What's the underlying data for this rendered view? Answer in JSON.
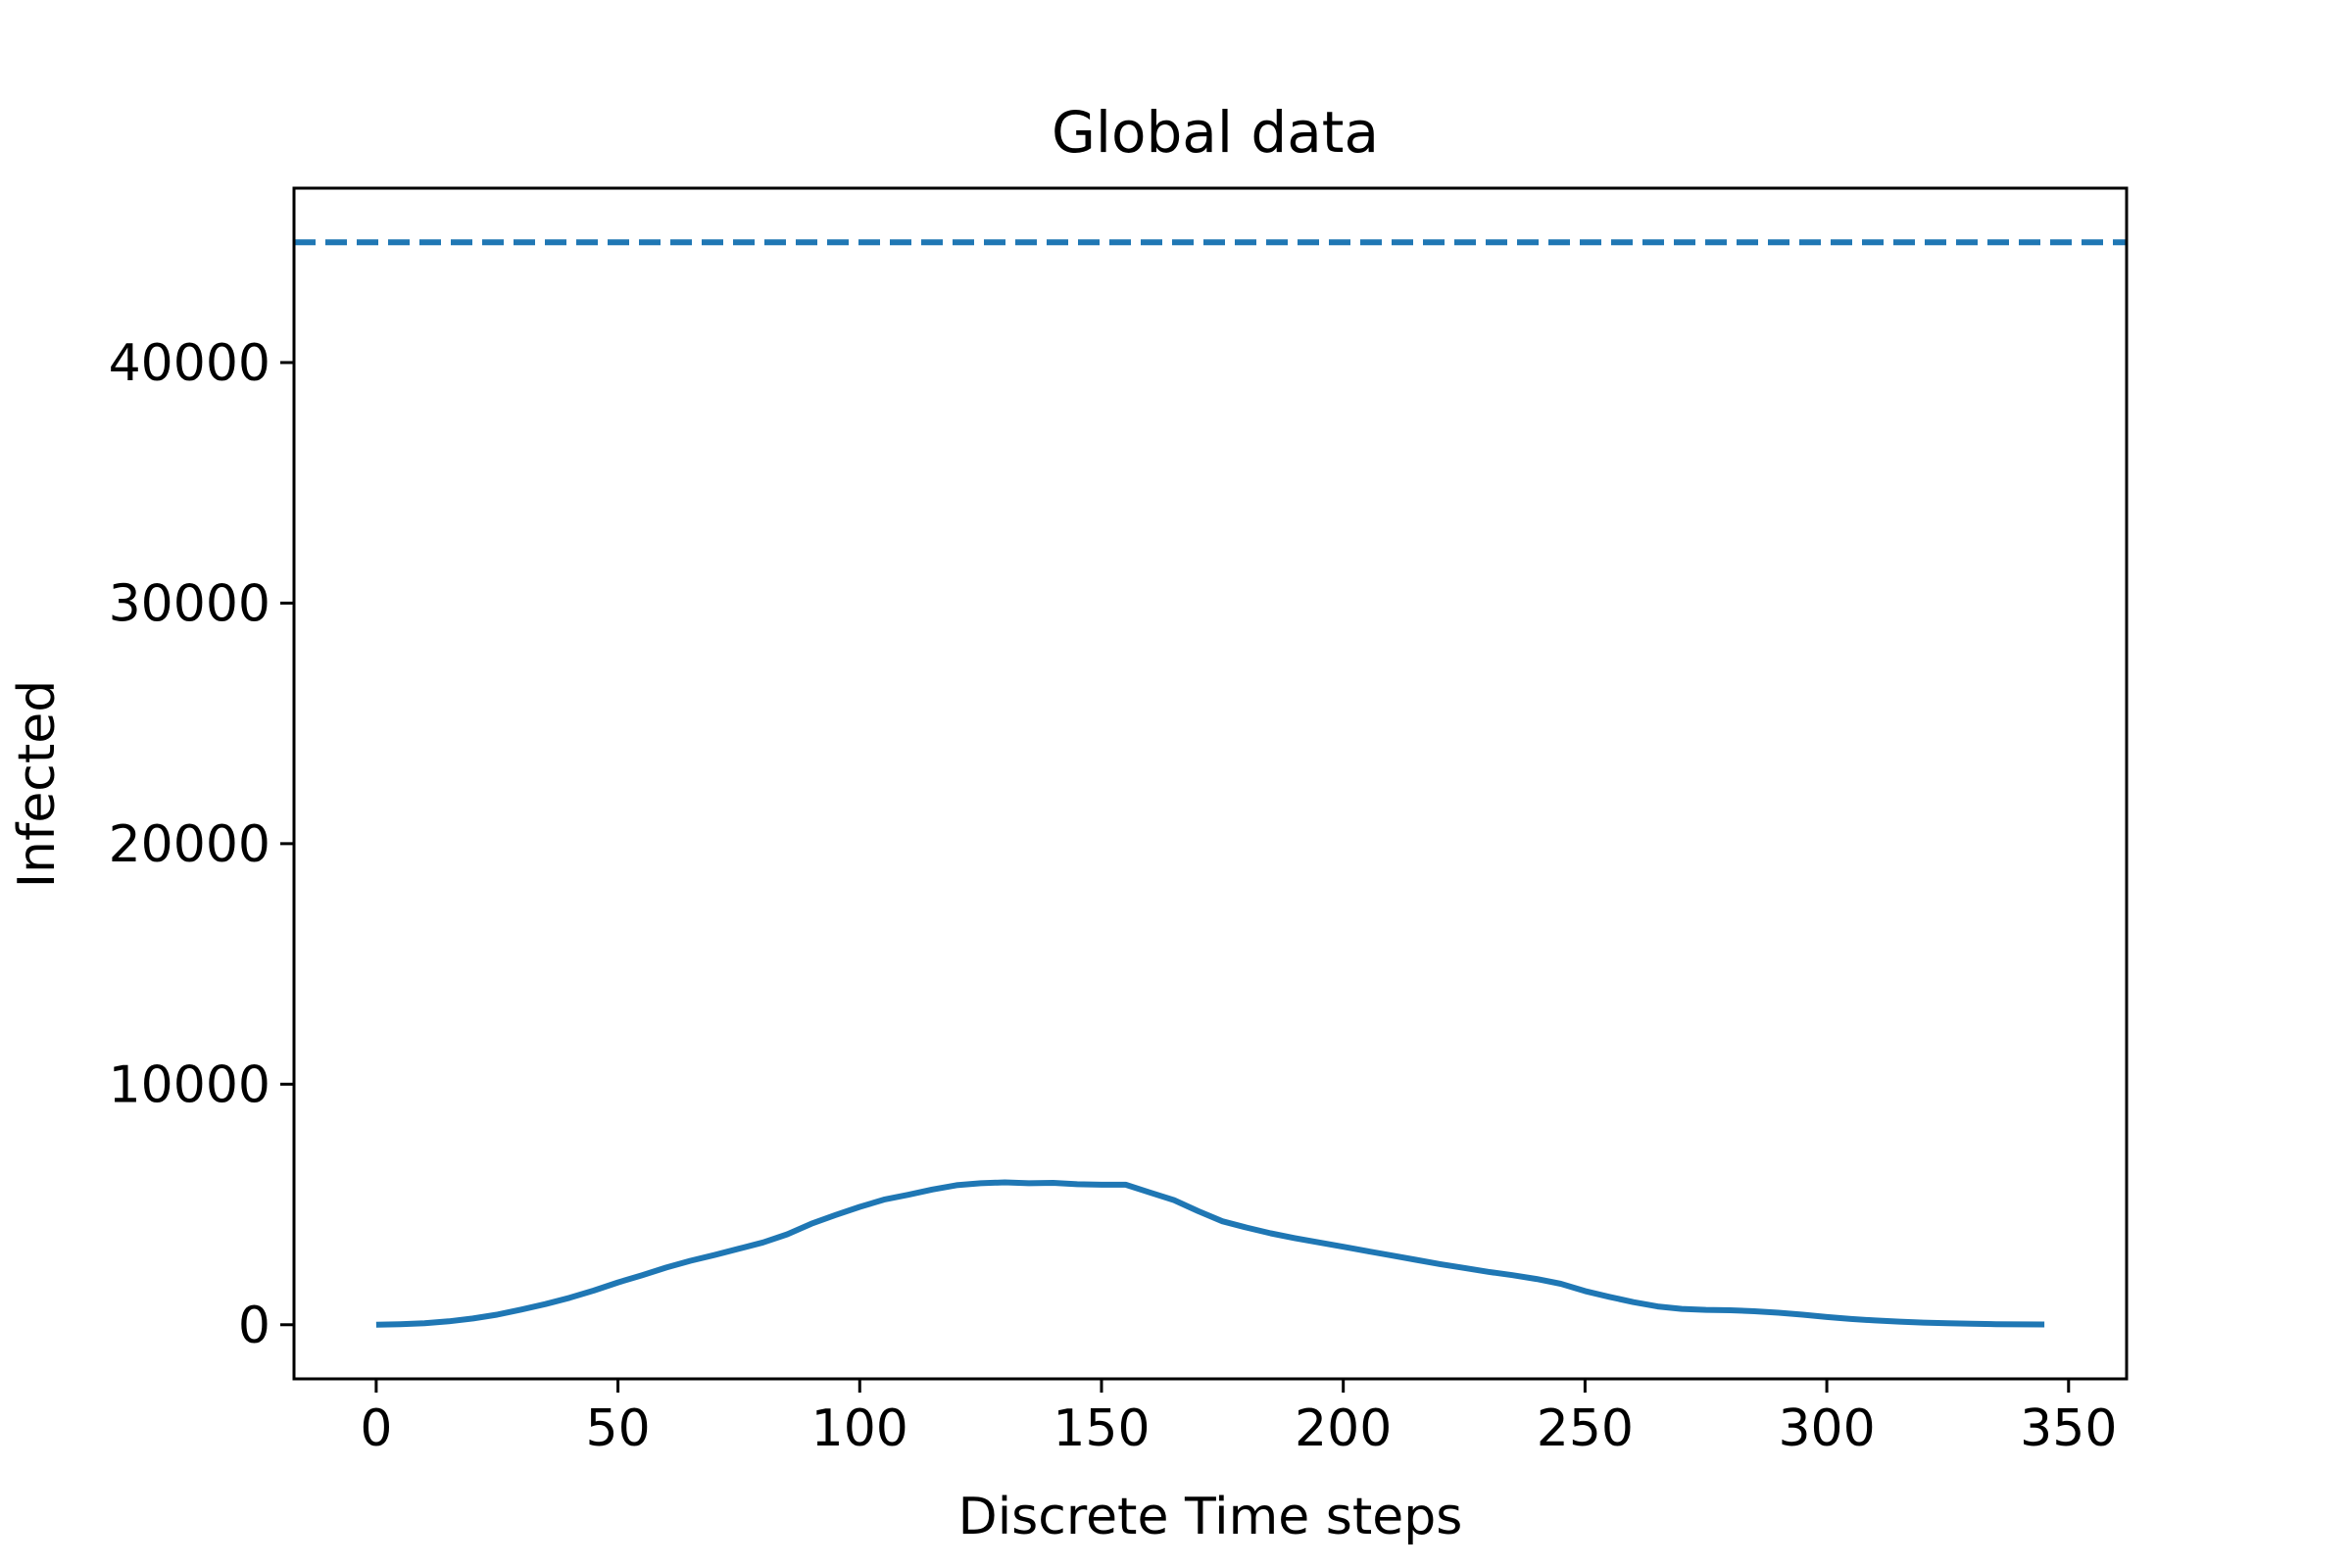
{
  "chart_data": {
    "type": "line",
    "title": "Global data",
    "xlabel": "Discrete Time steps",
    "ylabel": "Infected",
    "xlim": [
      -17,
      362
    ],
    "ylim": [
      -2250,
      47250
    ],
    "x_ticks": [
      0,
      50,
      100,
      150,
      200,
      250,
      300,
      350
    ],
    "y_ticks": [
      0,
      10000,
      20000,
      30000,
      40000
    ],
    "grid": false,
    "line_color": "#1f77b4",
    "series": [
      {
        "style": "solid",
        "x": [
          0,
          5,
          10,
          15,
          20,
          25,
          30,
          35,
          40,
          45,
          50,
          55,
          60,
          65,
          70,
          75,
          80,
          85,
          90,
          95,
          100,
          105,
          110,
          115,
          120,
          125,
          130,
          135,
          140,
          145,
          150,
          155,
          160,
          165,
          170,
          175,
          180,
          185,
          190,
          195,
          200,
          205,
          210,
          215,
          220,
          225,
          230,
          235,
          240,
          245,
          250,
          255,
          260,
          265,
          270,
          275,
          280,
          285,
          290,
          295,
          300,
          305,
          310,
          315,
          320,
          325,
          330,
          335,
          340,
          345
        ],
        "y": [
          0,
          20,
          60,
          140,
          260,
          420,
          630,
          860,
          1120,
          1420,
          1760,
          2060,
          2380,
          2660,
          2900,
          3160,
          3420,
          3760,
          4200,
          4560,
          4900,
          5200,
          5400,
          5620,
          5800,
          5880,
          5920,
          5880,
          5900,
          5840,
          5820,
          5820,
          5500,
          5180,
          4720,
          4300,
          4040,
          3800,
          3600,
          3420,
          3240,
          3060,
          2880,
          2700,
          2520,
          2360,
          2200,
          2060,
          1900,
          1700,
          1400,
          1160,
          940,
          760,
          660,
          620,
          600,
          560,
          500,
          420,
          320,
          240,
          180,
          130,
          90,
          60,
          40,
          25,
          15,
          10
        ]
      },
      {
        "style": "dashed",
        "x": [
          -17,
          362
        ],
        "y": [
          45000,
          45000
        ]
      }
    ]
  }
}
